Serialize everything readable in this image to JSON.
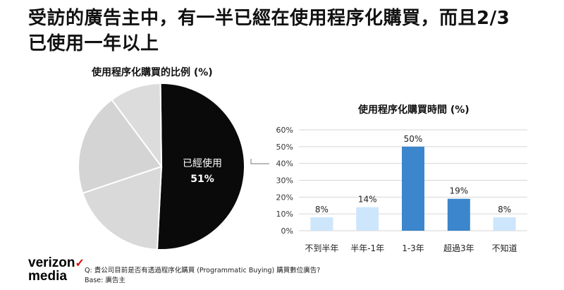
{
  "header": {
    "title_line1": "受訪的廣告主中，有一半已經在使用程序化購買，而且2/3",
    "title_line2": "已使用一年以上"
  },
  "chart_data": [
    {
      "type": "pie",
      "title": "使用程序化購買的比例 (%)",
      "slices": [
        {
          "label": "已經使用",
          "value": 51,
          "value_label": "51%",
          "color": "#0a0a0a"
        },
        {
          "label": "",
          "value": 19,
          "color": "#d9d9d9"
        },
        {
          "label": "",
          "value": 20,
          "color": "#d4d4d4"
        },
        {
          "label": "",
          "value": 10,
          "color": "#dcdcdc"
        }
      ]
    },
    {
      "type": "bar",
      "title": "使用程序化購買時間 (%)",
      "categories": [
        "不到半年",
        "半年-1年",
        "1-3年",
        "超過3年",
        "不知道"
      ],
      "values": [
        8,
        14,
        50,
        19,
        8
      ],
      "value_labels": [
        "8%",
        "14%",
        "50%",
        "19%",
        "8%"
      ],
      "colors": [
        "#cde6fb",
        "#cde6fb",
        "#3b86cc",
        "#3b86cc",
        "#cde6fb"
      ],
      "ylim": [
        0,
        60
      ],
      "yticks": [
        0,
        10,
        20,
        30,
        40,
        50,
        60
      ],
      "ytick_labels": [
        "0%",
        "10%",
        "20%",
        "30%",
        "40%",
        "50%",
        "60%"
      ],
      "grid": true
    }
  ],
  "logo": {
    "line1": "verizon",
    "check": "✓",
    "line2": "media"
  },
  "footnote": {
    "question": "Q: 貴公司目前是否有透過程序化購買 (Programmatic Buying) 購買數位廣告?",
    "base": "Base: 廣告主"
  }
}
